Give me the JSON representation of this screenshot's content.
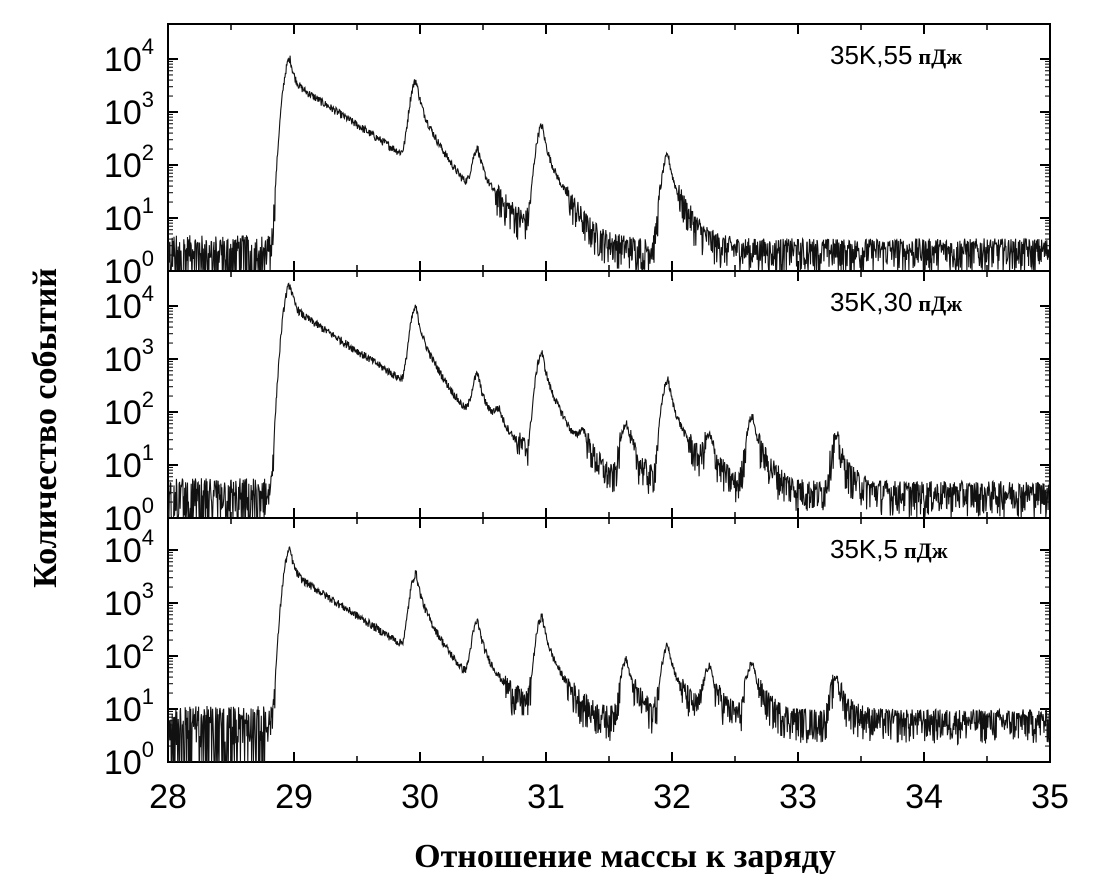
{
  "chart_data": {
    "type": "line",
    "xlabel": "Отношение массы к заряду",
    "ylabel": "Количество событий",
    "xlim": [
      28,
      35
    ],
    "x_ticks": [
      "28",
      "29",
      "30",
      "31",
      "32",
      "33",
      "34",
      "35"
    ],
    "y_scale": "log",
    "ylim": [
      1,
      10000
    ],
    "y_tick_exponents": [
      "0",
      "1",
      "2",
      "3",
      "4"
    ],
    "panels": [
      {
        "label_main": "35K,55",
        "label_unit": "пДж",
        "background": 2.5,
        "onset": 28.82,
        "peaks": [
          {
            "x": 28.97,
            "y": 10000
          },
          {
            "x": 29.97,
            "y": 3800
          },
          {
            "x": 30.46,
            "y": 180
          },
          {
            "x": 30.97,
            "y": 550
          },
          {
            "x": 31.97,
            "y": 150
          }
        ]
      },
      {
        "label_main": "35K,30",
        "label_unit": "пДж",
        "background": 3,
        "onset": 28.78,
        "peaks": [
          {
            "x": 28.97,
            "y": 25000
          },
          {
            "x": 29.97,
            "y": 9000
          },
          {
            "x": 30.46,
            "y": 450
          },
          {
            "x": 30.63,
            "y": 60
          },
          {
            "x": 30.97,
            "y": 1300
          },
          {
            "x": 31.3,
            "y": 30
          },
          {
            "x": 31.64,
            "y": 60
          },
          {
            "x": 31.97,
            "y": 400
          },
          {
            "x": 32.3,
            "y": 30
          },
          {
            "x": 32.64,
            "y": 80
          },
          {
            "x": 33.31,
            "y": 30
          }
        ]
      },
      {
        "label_main": "35K,5",
        "label_unit": "пДж",
        "background": 6,
        "onset": 28.78,
        "peaks": [
          {
            "x": 28.97,
            "y": 10000
          },
          {
            "x": 29.97,
            "y": 3500
          },
          {
            "x": 30.46,
            "y": 420
          },
          {
            "x": 30.97,
            "y": 550
          },
          {
            "x": 31.64,
            "y": 80
          },
          {
            "x": 31.97,
            "y": 160
          },
          {
            "x": 32.3,
            "y": 60
          },
          {
            "x": 32.64,
            "y": 70
          },
          {
            "x": 33.31,
            "y": 35
          }
        ]
      }
    ]
  }
}
